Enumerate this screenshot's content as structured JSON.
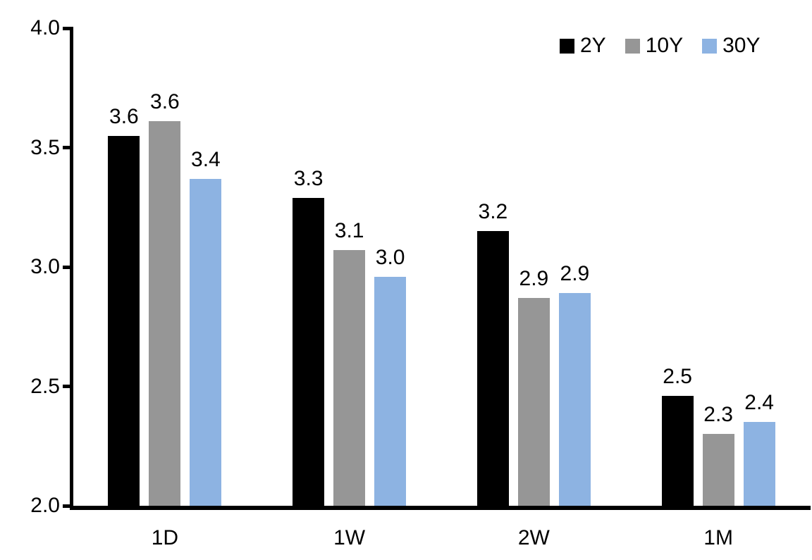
{
  "chart_data": {
    "type": "bar",
    "title": "",
    "xlabel": "",
    "ylabel": "",
    "categories": [
      "1D",
      "1W",
      "2W",
      "1M"
    ],
    "series": [
      {
        "name": "2Y",
        "color": "#000000",
        "values": [
          3.55,
          3.29,
          3.15,
          2.46
        ],
        "labels": [
          "3.6",
          "3.3",
          "3.2",
          "2.5"
        ]
      },
      {
        "name": "10Y",
        "color": "#969696",
        "values": [
          3.61,
          3.07,
          2.87,
          2.3
        ],
        "labels": [
          "3.6",
          "3.1",
          "2.9",
          "2.3"
        ]
      },
      {
        "name": "30Y",
        "color": "#8DB3E2",
        "values": [
          3.37,
          2.96,
          2.89,
          2.35
        ],
        "labels": [
          "3.4",
          "3.0",
          "2.9",
          "2.4"
        ]
      }
    ],
    "y_axis": {
      "min": 2.0,
      "max": 4.0,
      "tick_values": [
        4.0,
        3.5,
        3.0,
        2.5,
        2.0
      ],
      "tick_labels": [
        "4.0",
        "3.5",
        "3.0",
        "2.5",
        "2.0"
      ]
    },
    "legend": {
      "position": "top-right",
      "entries": [
        "2Y",
        "10Y",
        "30Y"
      ]
    },
    "grid": false,
    "value_labels_visible": true,
    "axis_color": "#000000",
    "background_color": "#FFFFFF"
  }
}
